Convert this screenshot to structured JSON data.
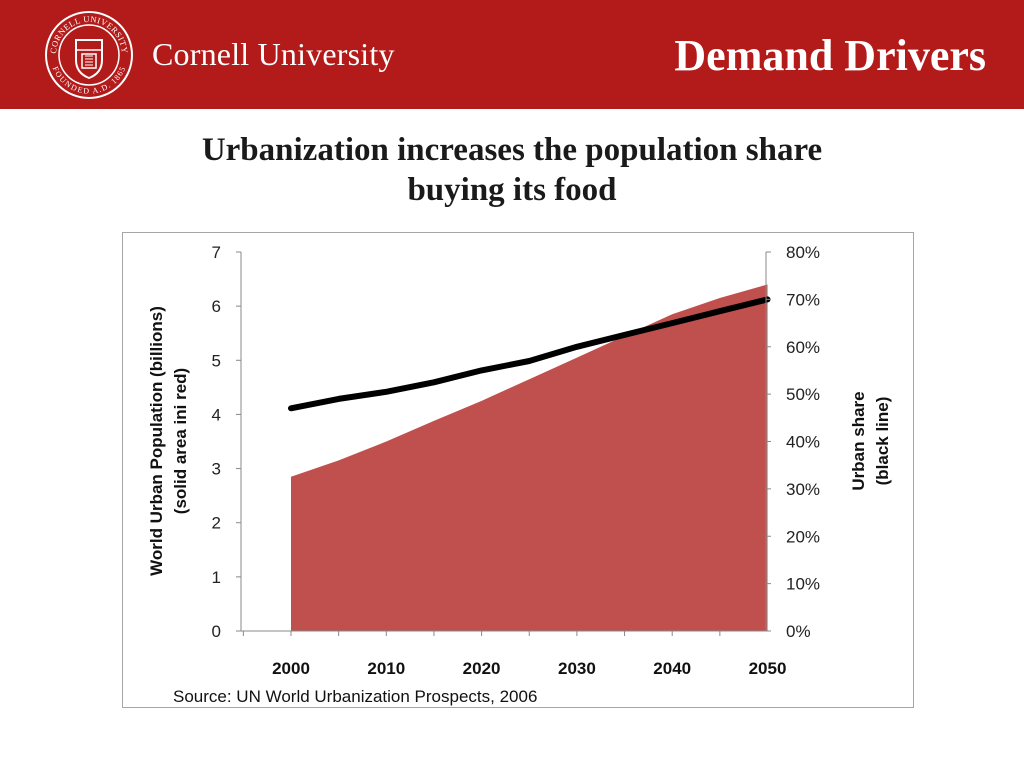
{
  "header": {
    "university_name": "Cornell University",
    "section_title": "Demand Drivers",
    "seal_text_top": "CORNELL UNIVERSITY",
    "seal_text_bottom": "FOUNDED A.D. 1865",
    "brand_color": "#b31b1b"
  },
  "slide": {
    "title_line1": "Urbanization increases the population share",
    "title_line2": "buying its food",
    "source": "Source: UN World Urbanization  Prospects, 2006"
  },
  "chart_data": {
    "type": "area",
    "title": "",
    "xlabel": "",
    "ylabel_left_line1": "World Urban Population  (billions)",
    "ylabel_left_line2": "(solid area ini red)",
    "ylabel_right_line1": "Urban share",
    "ylabel_right_line2": "(black line)",
    "x": [
      2000,
      2005,
      2010,
      2015,
      2020,
      2025,
      2030,
      2035,
      2040,
      2045,
      2050
    ],
    "categories": [
      "2000",
      "2010",
      "2020",
      "2030",
      "2040",
      "2050"
    ],
    "ylim_left": [
      0,
      7
    ],
    "yticks_left": [
      "0",
      "1",
      "2",
      "3",
      "4",
      "5",
      "6",
      "7"
    ],
    "ylim_right": [
      0,
      80
    ],
    "yticks_right": [
      "0%",
      "10%",
      "20%",
      "30%",
      "40%",
      "50%",
      "60%",
      "70%",
      "80%"
    ],
    "series": [
      {
        "name": "World Urban Population (billions)",
        "axis": "left",
        "style": "area",
        "color": "#c0504d",
        "values": [
          2.85,
          3.15,
          3.5,
          3.88,
          4.25,
          4.65,
          5.05,
          5.45,
          5.85,
          6.15,
          6.4
        ]
      },
      {
        "name": "Urban share",
        "axis": "right",
        "style": "line",
        "color": "#000000",
        "values": [
          47,
          49,
          50.5,
          52.5,
          55,
          57,
          60,
          62.5,
          65,
          67.5,
          70
        ]
      }
    ]
  }
}
